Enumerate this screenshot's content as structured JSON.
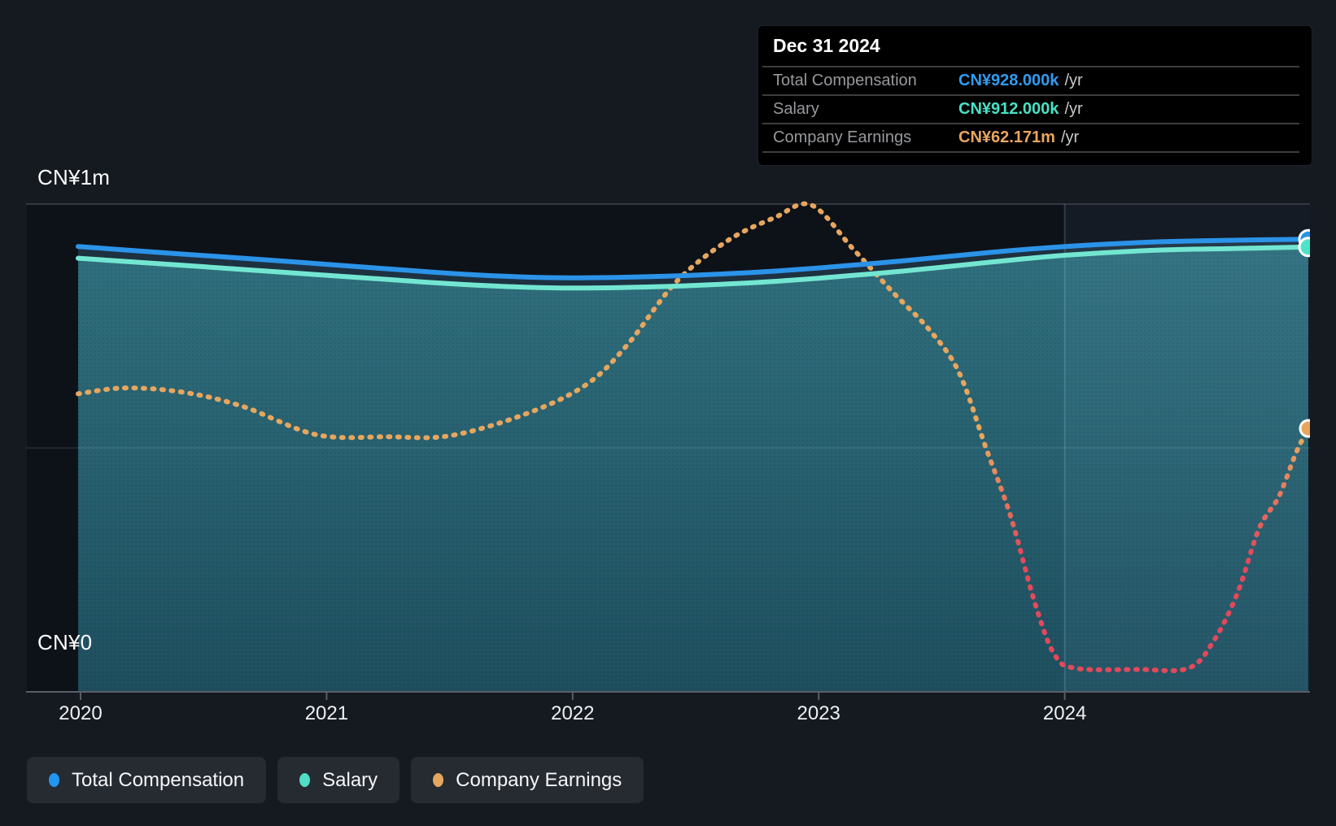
{
  "tooltip": {
    "title": "Dec 31 2024",
    "rows": [
      {
        "label": "Total Compensation",
        "value": "CN¥928.000k",
        "unit": "/yr",
        "value_css": "color:#2f9cf2"
      },
      {
        "label": "Salary",
        "value": "CN¥912.000k",
        "unit": "/yr",
        "value_css": "color:#47e2c7"
      },
      {
        "label": "Company Earnings",
        "value": "CN¥62.171m",
        "unit": "/yr",
        "value_css": "color:#e9a75f"
      }
    ]
  },
  "legend": [
    {
      "label": "Total Compensation",
      "dot_css": "background:#2196f3"
    },
    {
      "label": "Salary",
      "dot_css": "background:#4fdfc4"
    },
    {
      "label": "Company Earnings",
      "dot_css": "background:#e2a85e"
    }
  ],
  "chart_data": {
    "type": "line",
    "title": "CEO compensation over time",
    "y_axis": {
      "max_label": "CN¥1m",
      "min_label": "CN¥0",
      "min": 0,
      "max": 1000,
      "units": "CN¥ thousands per year",
      "gridlines": [
        0,
        500,
        1000
      ]
    },
    "x_ticks": [
      "2020",
      "2021",
      "2022",
      "2023",
      "2024"
    ],
    "x_range": [
      2019.99,
      2024.99
    ],
    "highlight_from": 2024,
    "end_date_label": "Dec 31 2024",
    "series": [
      {
        "name": "Total Compensation",
        "color": "#2b93e8",
        "marker_color": "#2994e6",
        "style": "solid",
        "y_mode": "thousands",
        "end_value_label": "CN¥928.000k /yr",
        "points": [
          [
            2019.99,
            913
          ],
          [
            2020.4,
            898
          ],
          [
            2020.8,
            884
          ],
          [
            2021.2,
            869
          ],
          [
            2021.6,
            855
          ],
          [
            2021.95,
            849
          ],
          [
            2022.3,
            851
          ],
          [
            2022.7,
            859
          ],
          [
            2023.0,
            869
          ],
          [
            2023.35,
            884
          ],
          [
            2023.7,
            901
          ],
          [
            2024.0,
            913
          ],
          [
            2024.35,
            922
          ],
          [
            2024.7,
            926
          ],
          [
            2024.99,
            928
          ]
        ]
      },
      {
        "name": "Salary",
        "color": "#73e6d1",
        "marker_color": "#4fe3c9",
        "style": "solid",
        "y_mode": "thousands",
        "end_value_label": "CN¥912.000k /yr",
        "points": [
          [
            2019.99,
            889
          ],
          [
            2020.4,
            875
          ],
          [
            2020.8,
            861
          ],
          [
            2021.2,
            847
          ],
          [
            2021.6,
            834
          ],
          [
            2021.95,
            828
          ],
          [
            2022.3,
            830
          ],
          [
            2022.7,
            838
          ],
          [
            2023.0,
            848
          ],
          [
            2023.35,
            863
          ],
          [
            2023.7,
            881
          ],
          [
            2024.0,
            895
          ],
          [
            2024.35,
            905
          ],
          [
            2024.7,
            909
          ],
          [
            2024.99,
            912
          ]
        ]
      },
      {
        "name": "Company Earnings",
        "color_high": "#e7a65e",
        "color_low": "#e2495b",
        "marker_color": "#e8a55f",
        "style": "dotted",
        "y_mode": "axis_fraction",
        "scale_note": "plotted on a hidden earnings scale; values below are fractions of the visible CN¥0–CN¥1m axis height",
        "end_value_label": "CN¥62.171m /yr",
        "points": [
          [
            2019.99,
            0.611
          ],
          [
            2020.18,
            0.623
          ],
          [
            2020.42,
            0.614
          ],
          [
            2020.66,
            0.585
          ],
          [
            2020.96,
            0.527
          ],
          [
            2021.25,
            0.523
          ],
          [
            2021.5,
            0.525
          ],
          [
            2021.8,
            0.568
          ],
          [
            2022.05,
            0.628
          ],
          [
            2022.22,
            0.71
          ],
          [
            2022.42,
            0.84
          ],
          [
            2022.63,
            0.925
          ],
          [
            2022.82,
            0.972
          ],
          [
            2022.97,
            0.998
          ],
          [
            2023.14,
            0.908
          ],
          [
            2023.3,
            0.82
          ],
          [
            2023.45,
            0.742
          ],
          [
            2023.57,
            0.655
          ],
          [
            2023.68,
            0.5
          ],
          [
            2023.78,
            0.36
          ],
          [
            2023.88,
            0.18
          ],
          [
            2023.96,
            0.075
          ],
          [
            2024.05,
            0.048
          ],
          [
            2024.3,
            0.046
          ],
          [
            2024.5,
            0.048
          ],
          [
            2024.6,
            0.1
          ],
          [
            2024.7,
            0.2
          ],
          [
            2024.79,
            0.335
          ],
          [
            2024.87,
            0.4
          ],
          [
            2024.94,
            0.49
          ],
          [
            2024.99,
            0.54
          ]
        ]
      }
    ]
  }
}
